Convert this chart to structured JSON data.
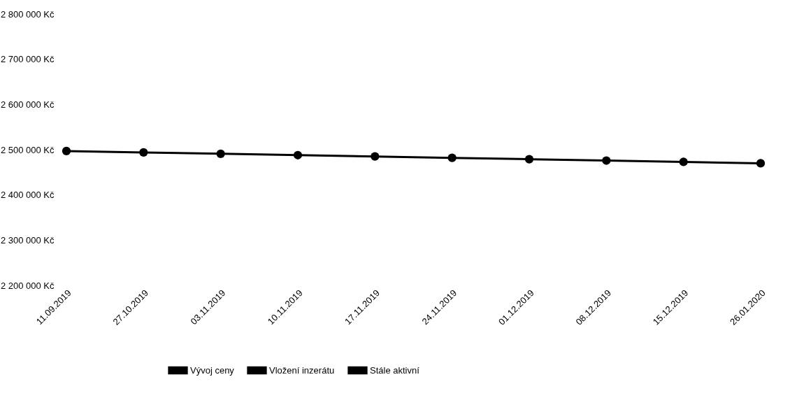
{
  "chart_data": {
    "type": "line",
    "categories": [
      "11.09.2019",
      "27.10.2019",
      "03.11.2019",
      "10.11.2019",
      "17.11.2019",
      "24.11.2019",
      "01.12.2019",
      "08.12.2019",
      "15.12.2019",
      "26.01.2020"
    ],
    "series": [
      {
        "name": "Vývoj ceny",
        "color": "#000000",
        "values": [
          2497000,
          2494000,
          2491000,
          2488000,
          2485000,
          2482000,
          2479000,
          2476000,
          2473000,
          2470000
        ]
      },
      {
        "name": "Vložení inzerátu",
        "color": "#000000",
        "values": [
          null,
          null,
          null,
          null,
          null,
          null,
          null,
          null,
          null,
          null
        ]
      },
      {
        "name": "Stále aktivní",
        "color": "#000000",
        "values": [
          null,
          null,
          null,
          null,
          null,
          null,
          null,
          null,
          null,
          null
        ]
      }
    ],
    "ylim": [
      2200000,
      2800000
    ],
    "yticks": [
      {
        "value": 2200000,
        "label": "2 200 000 Kč"
      },
      {
        "value": 2300000,
        "label": "2 300 000 Kč"
      },
      {
        "value": 2400000,
        "label": "2 400 000 Kč"
      },
      {
        "value": 2500000,
        "label": "2 500 000 Kč"
      },
      {
        "value": 2600000,
        "label": "2 600 000 Kč"
      },
      {
        "value": 2700000,
        "label": "2 700 000 Kč"
      },
      {
        "value": 2800000,
        "label": "2 800 000 Kč"
      }
    ],
    "grid": false,
    "legend": "bottom",
    "marker": "circle",
    "line_style": "solid"
  }
}
